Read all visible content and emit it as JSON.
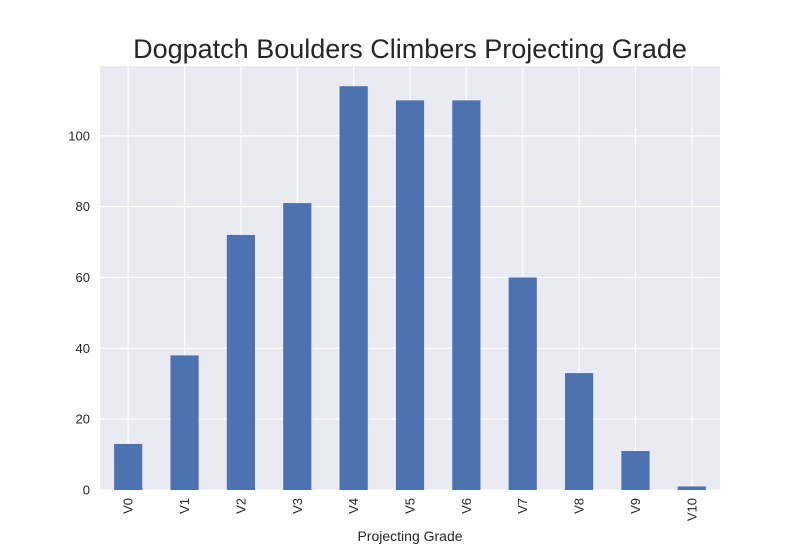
{
  "chart_data": {
    "type": "bar",
    "title": "Dogpatch Boulders Climbers Projecting Grade",
    "xlabel": "Projecting Grade",
    "ylabel": "",
    "categories": [
      "V0",
      "V1",
      "V2",
      "V3",
      "V4",
      "V5",
      "V6",
      "V7",
      "V8",
      "V9",
      "V10"
    ],
    "values": [
      13,
      38,
      72,
      81,
      114,
      110,
      110,
      60,
      33,
      11,
      1
    ],
    "ylim": [
      0,
      119.7
    ],
    "yticks": [
      0,
      20,
      40,
      60,
      80,
      100
    ],
    "grid": true,
    "legend": "none",
    "colors": {
      "bar": "#4c72b0",
      "plot_background": "#eaeaf2",
      "grid": "#ffffff",
      "text": "#262626"
    }
  }
}
